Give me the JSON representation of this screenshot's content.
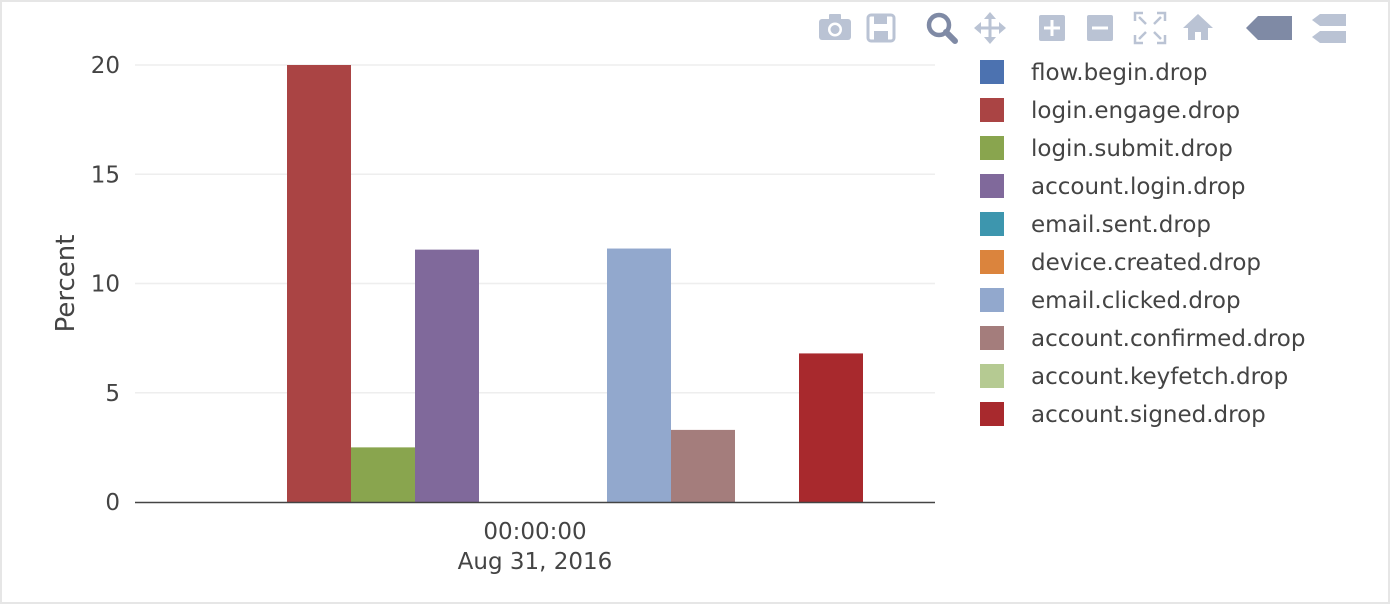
{
  "chart_data": {
    "type": "bar",
    "ylabel": "Percent",
    "ylim": [
      0,
      20
    ],
    "yticks": [
      0,
      5,
      10,
      15,
      20
    ],
    "xticks": [
      {
        "time": "00:00:00",
        "date": "Aug 31, 2016"
      }
    ],
    "grid": true,
    "legend_position": "right",
    "series": [
      {
        "name": "flow.begin.drop",
        "color": "#4c72b0",
        "values": [
          0
        ]
      },
      {
        "name": "login.engage.drop",
        "color": "#aa4444",
        "values": [
          20.0
        ]
      },
      {
        "name": "login.submit.drop",
        "color": "#89a54e",
        "values": [
          2.5
        ]
      },
      {
        "name": "account.login.drop",
        "color": "#80699b",
        "values": [
          11.55
        ]
      },
      {
        "name": "email.sent.drop",
        "color": "#3d96ae",
        "values": [
          0
        ]
      },
      {
        "name": "device.created.drop",
        "color": "#db843d",
        "values": [
          0
        ]
      },
      {
        "name": "email.clicked.drop",
        "color": "#92a8cd",
        "values": [
          11.6
        ]
      },
      {
        "name": "account.confirmed.drop",
        "color": "#a47d7c",
        "values": [
          3.3
        ]
      },
      {
        "name": "account.keyfetch.drop",
        "color": "#b5ca92",
        "values": [
          0
        ]
      },
      {
        "name": "account.signed.drop",
        "color": "#a8292d",
        "values": [
          6.8
        ]
      }
    ]
  },
  "modebar": [
    {
      "name": "camera-icon",
      "active": false
    },
    {
      "name": "save-icon",
      "active": false
    },
    {
      "name": "zoom-icon",
      "active": true
    },
    {
      "name": "pan-icon",
      "active": false
    },
    {
      "name": "zoom-in-icon",
      "active": false
    },
    {
      "name": "zoom-out-icon",
      "active": false
    },
    {
      "name": "autoscale-icon",
      "active": false
    },
    {
      "name": "home-icon",
      "active": false
    },
    {
      "name": "hover-closest-icon",
      "active": true
    },
    {
      "name": "hover-compare-icon",
      "active": false
    }
  ]
}
